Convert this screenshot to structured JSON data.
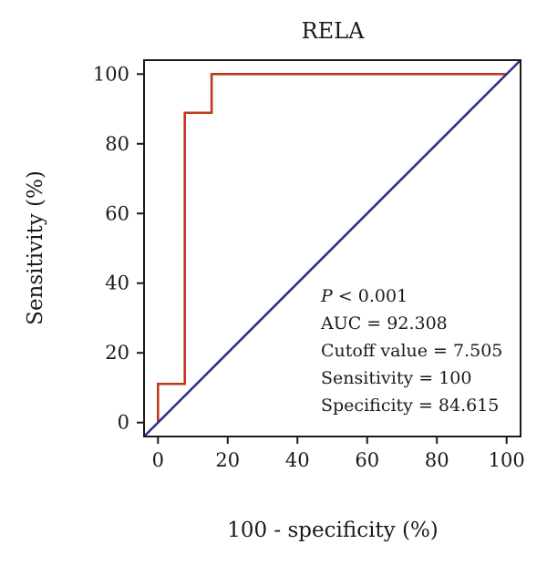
{
  "chart_data": {
    "type": "line",
    "title": "RELA",
    "xlabel": "100 - specificity (%)",
    "ylabel": "Sensitivity (%)",
    "xlim": [
      -4,
      104
    ],
    "ylim": [
      -4,
      104
    ],
    "x_ticks": [
      0,
      20,
      40,
      60,
      80,
      100
    ],
    "y_ticks": [
      0,
      20,
      40,
      60,
      80,
      100
    ],
    "grid": false,
    "series": [
      {
        "color": "#c0391b",
        "x": [
          0,
          0,
          7.69,
          7.69,
          15.385,
          15.385,
          100
        ],
        "y": [
          0,
          11.1,
          11.1,
          88.9,
          88.9,
          100,
          100
        ]
      },
      {
        "color": "#2e3192",
        "x": [
          -4,
          104
        ],
        "y": [
          -4,
          104
        ]
      }
    ],
    "annotations": [
      {
        "prefix": "P",
        "text": " < 0.001"
      },
      {
        "text": "AUC = 92.308"
      },
      {
        "text": "Cutoff value = 7.505"
      },
      {
        "text": "Sensitivity = 100"
      },
      {
        "text": "Specificity = 84.615"
      }
    ]
  }
}
